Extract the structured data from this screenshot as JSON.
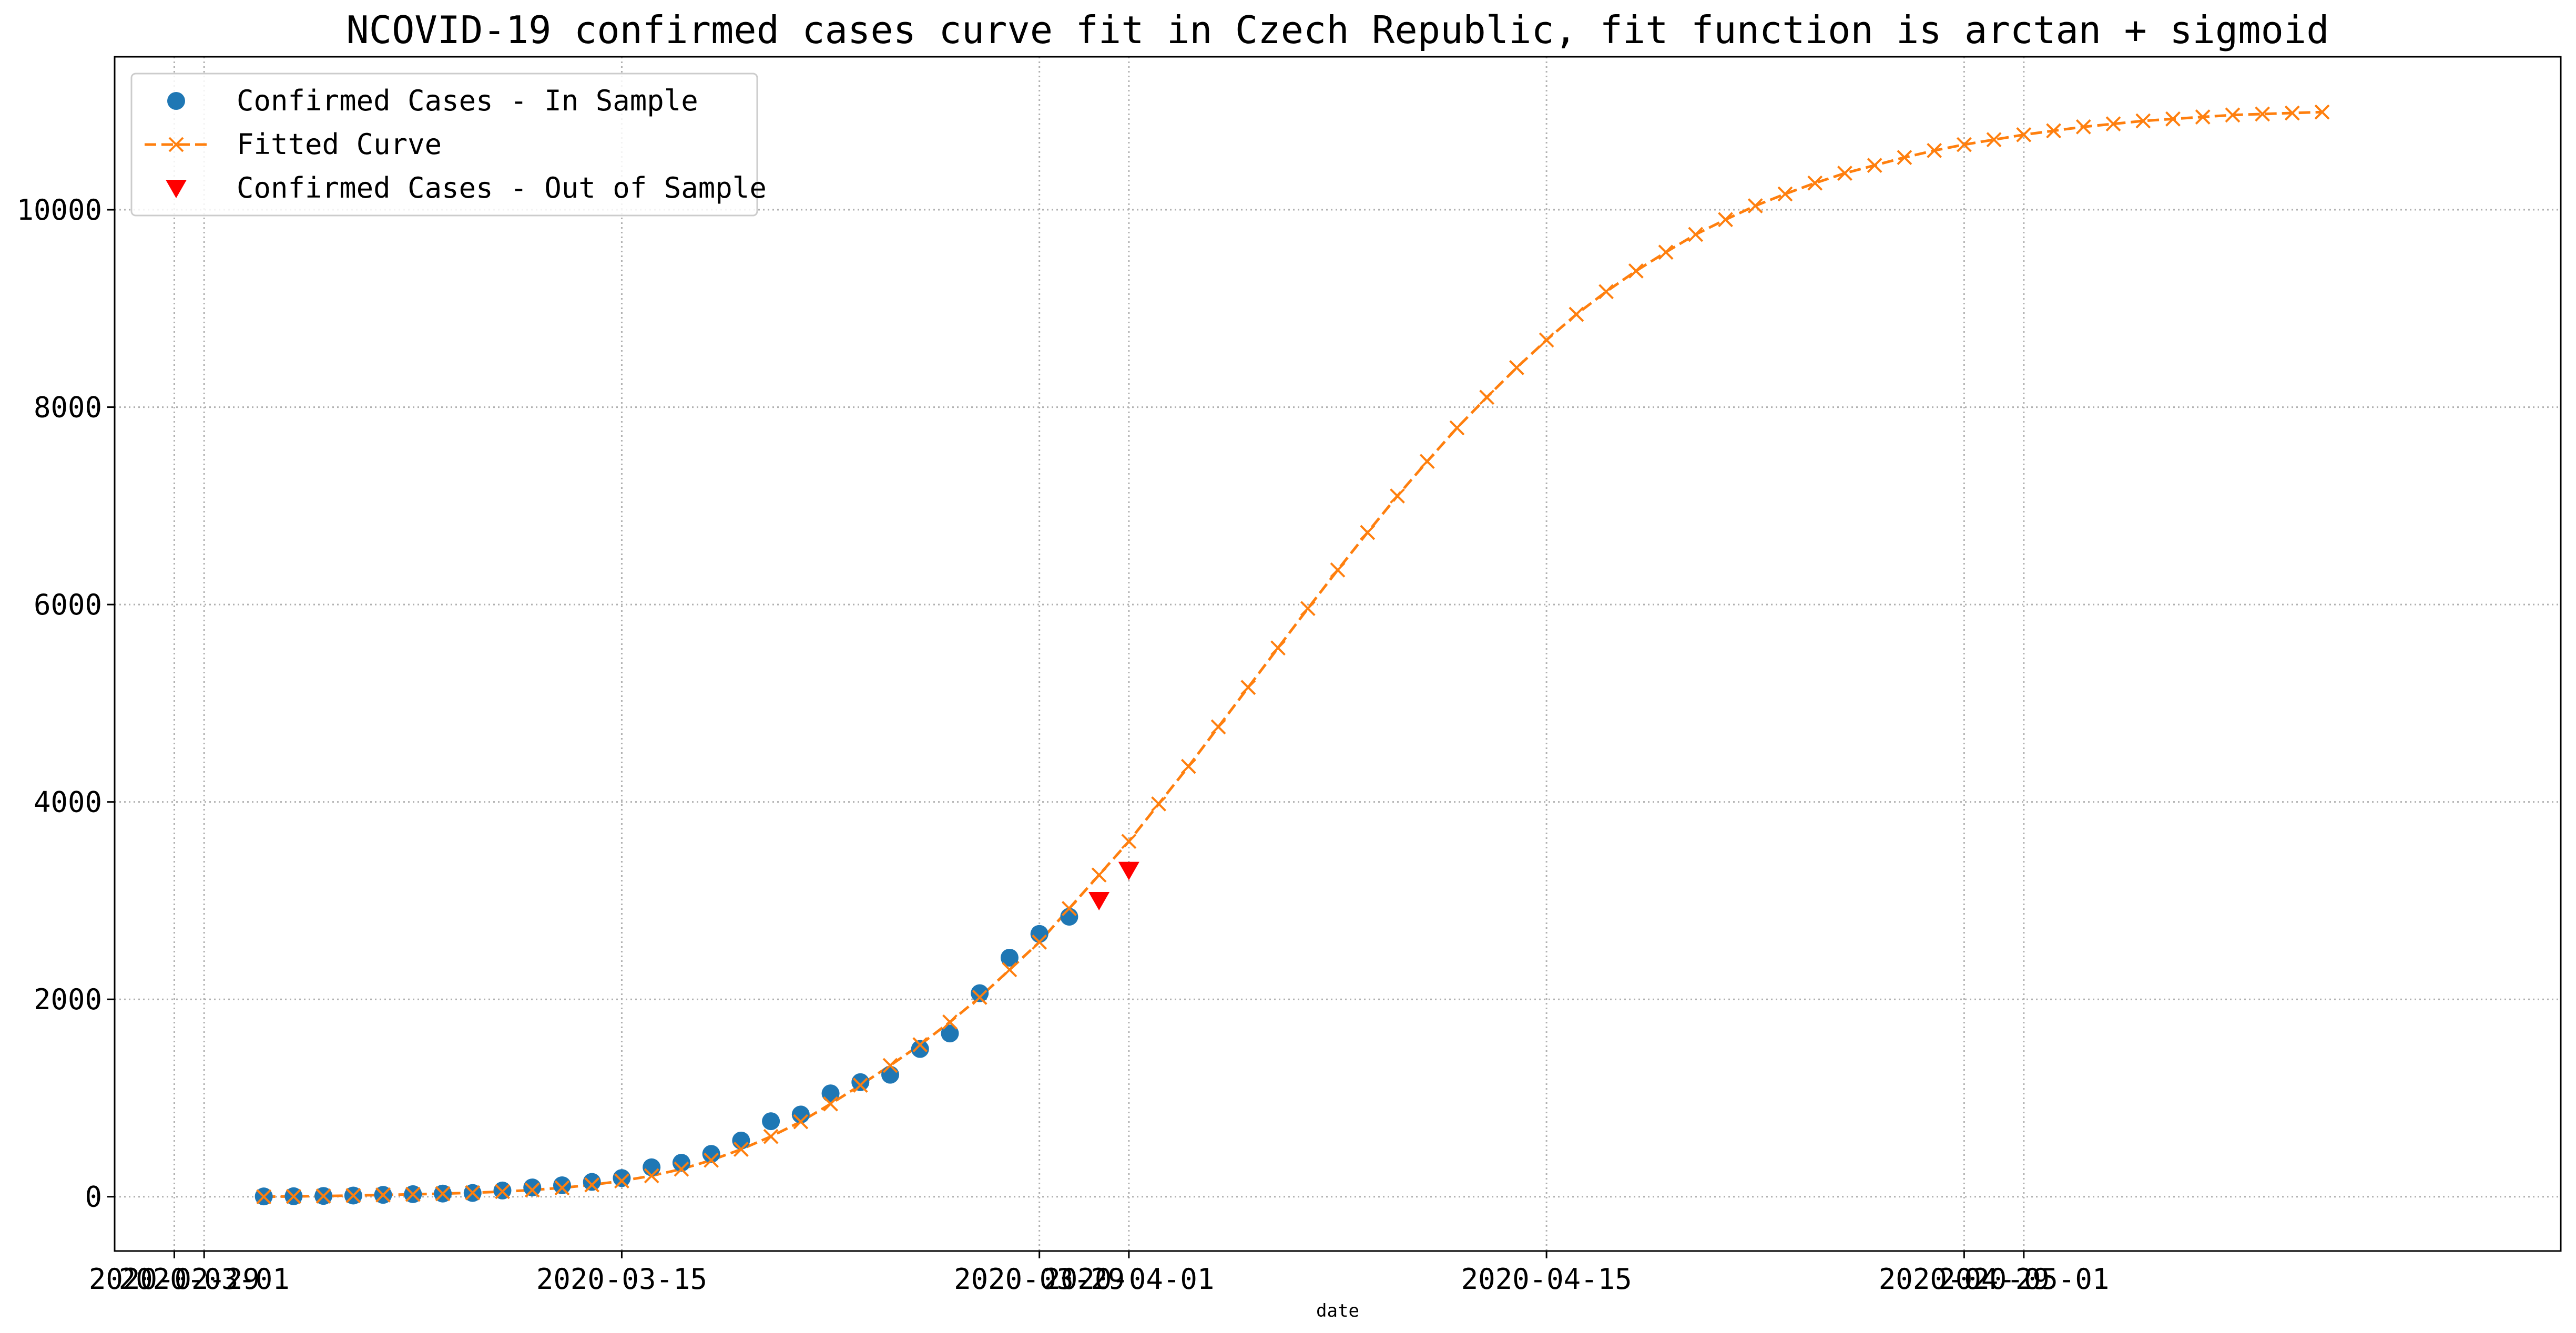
{
  "chart_data": {
    "type": "line",
    "title": "NCOVID-19 confirmed cases curve fit in Czech Republic, fit function is arctan + sigmoid",
    "xlabel": "date",
    "ylabel": "",
    "xlim": [
      "2020-02-27",
      "2020-05-19"
    ],
    "ylim": [
      -550,
      11550
    ],
    "grid": true,
    "legend": "top-left",
    "x_ticks": [
      "2020-02-29",
      "2020-03-01",
      "2020-03-15",
      "2020-03-29",
      "2020-04-01",
      "2020-04-15",
      "2020-04-29",
      "2020-05-01"
    ],
    "y_ticks": [
      0,
      2000,
      4000,
      6000,
      8000,
      10000
    ],
    "series": [
      {
        "name": "Confirmed Cases - In Sample",
        "style": "scatter",
        "color": "#1f77b4",
        "x": [
          "2020-03-03",
          "2020-03-04",
          "2020-03-05",
          "2020-03-06",
          "2020-03-07",
          "2020-03-08",
          "2020-03-09",
          "2020-03-10",
          "2020-03-11",
          "2020-03-12",
          "2020-03-13",
          "2020-03-14",
          "2020-03-15",
          "2020-03-16",
          "2020-03-17",
          "2020-03-18",
          "2020-03-19",
          "2020-03-20",
          "2020-03-21",
          "2020-03-22",
          "2020-03-23",
          "2020-03-24",
          "2020-03-25",
          "2020-03-26",
          "2020-03-27",
          "2020-03-28",
          "2020-03-29",
          "2020-03-30"
        ],
        "y": [
          3,
          5,
          8,
          12,
          19,
          26,
          32,
          38,
          63,
          94,
          116,
          150,
          189,
          298,
          344,
          434,
          569,
          765,
          833,
          1047,
          1161,
          1236,
          1497,
          1654,
          2062,
          2422,
          2663,
          2837
        ]
      },
      {
        "name": "Fitted Curve",
        "style": "dashed-line-x",
        "color": "#ff7f0e",
        "x_start": "2020-03-03",
        "y": [
          0,
          3,
          7,
          12,
          18,
          24,
          31,
          40,
          52,
          68,
          90,
          120,
          160,
          212,
          280,
          370,
          480,
          610,
          760,
          940,
          1130,
          1330,
          1540,
          1770,
          2020,
          2300,
          2580,
          2920,
          3260,
          3600,
          3980,
          4360,
          4760,
          5160,
          5560,
          5960,
          6350,
          6730,
          7100,
          7450,
          7790,
          8100,
          8400,
          8680,
          8940,
          9170,
          9380,
          9570,
          9750,
          9900,
          10040,
          10160,
          10270,
          10370,
          10450,
          10530,
          10600,
          10660,
          10710,
          10760,
          10800,
          10840,
          10870,
          10900,
          10920,
          10940,
          10960,
          10970,
          10980,
          10990
        ]
      },
      {
        "name": "Confirmed Cases - Out of Sample",
        "style": "triangle-down",
        "color": "#ff0000",
        "x": [
          "2020-03-31",
          "2020-04-01"
        ],
        "y": [
          3002,
          3308
        ]
      }
    ]
  }
}
